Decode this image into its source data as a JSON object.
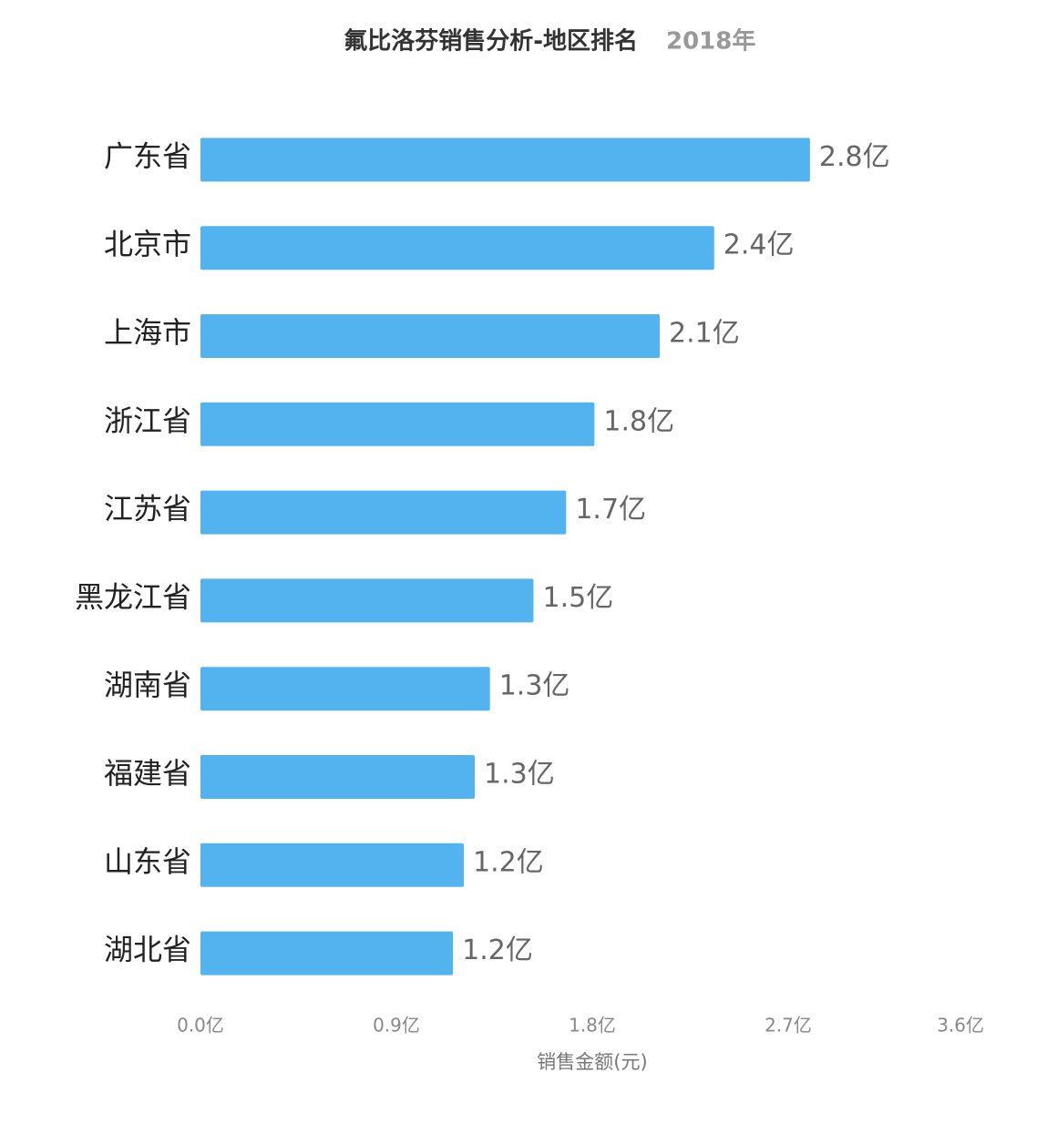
{
  "chart_data": {
    "type": "bar",
    "orientation": "horizontal",
    "title": "氟比洛芬销售分析-地区排名",
    "subtitle": "2018年",
    "x_label": "销售金额(元)",
    "categories": [
      "广东省",
      "北京市",
      "上海市",
      "浙江省",
      "江苏省",
      "黑龙江省",
      "湖南省",
      "福建省",
      "山东省",
      "湖北省"
    ],
    "values": [
      2.8,
      2.36,
      2.11,
      1.81,
      1.68,
      1.53,
      1.33,
      1.26,
      1.21,
      1.16
    ],
    "value_labels": [
      "2.8亿",
      "2.4亿",
      "2.1亿",
      "1.8亿",
      "1.7亿",
      "1.5亿",
      "1.3亿",
      "1.3亿",
      "1.2亿",
      "1.2亿"
    ],
    "color": "#52b3ef",
    "xlim": [
      0,
      3.6
    ],
    "xticks": [
      {
        "value": 0,
        "label": "0.0亿"
      },
      {
        "value": 0.9,
        "label": "0.9亿"
      },
      {
        "value": 1.8,
        "label": "1.8亿"
      },
      {
        "value": 2.7,
        "label": "2.7亿"
      },
      {
        "value": 3.6,
        "label": "3.6亿"
      }
    ],
    "grid": false
  }
}
